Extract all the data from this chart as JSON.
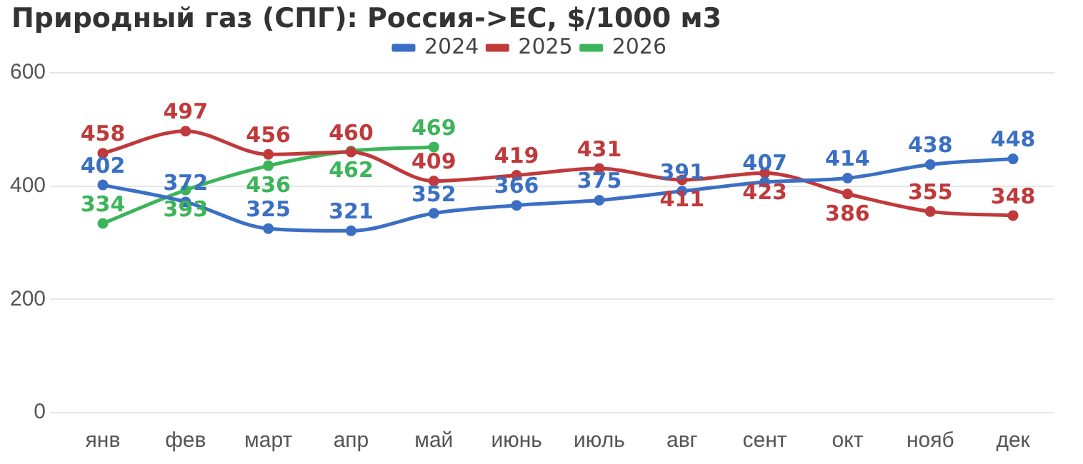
{
  "chart_data": {
    "type": "line",
    "title": "Природный газ (СПГ): Россия->ЕС, $/1000 м3",
    "categories": [
      "янв",
      "фев",
      "март",
      "апр",
      "май",
      "июнь",
      "июль",
      "авг",
      "сент",
      "окт",
      "нояб",
      "дек"
    ],
    "series": [
      {
        "name": "2024",
        "color": "#3a6fc4",
        "values": [
          402,
          372,
          325,
          321,
          352,
          366,
          375,
          391,
          407,
          414,
          438,
          448
        ]
      },
      {
        "name": "2025",
        "color": "#c0393b",
        "values": [
          458,
          497,
          456,
          460,
          409,
          419,
          431,
          411,
          423,
          386,
          355,
          348
        ]
      },
      {
        "name": "2026",
        "color": "#3cb55a",
        "values": [
          334,
          393,
          436,
          462,
          469,
          null,
          null,
          null,
          null,
          null,
          null,
          null
        ]
      }
    ],
    "ylim": [
      0,
      600
    ],
    "yticks": [
      0,
      200,
      400,
      600
    ],
    "grid": "y",
    "legend": "top",
    "marker": "circle",
    "data_labels": true
  }
}
